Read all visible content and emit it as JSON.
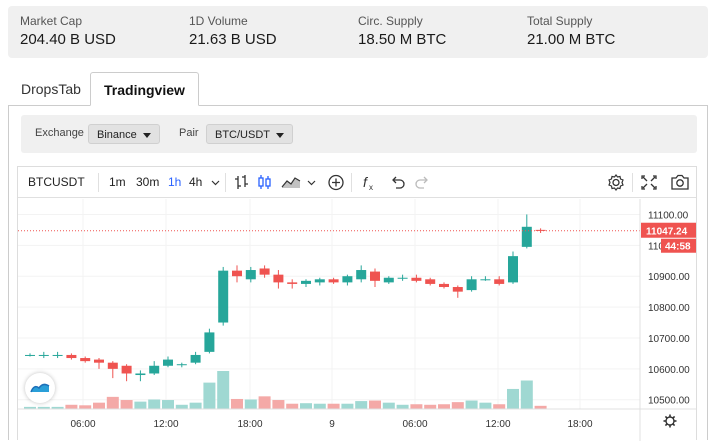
{
  "stats": [
    {
      "label": "Market Cap",
      "value": "204.40 B USD"
    },
    {
      "label": "1D Volume",
      "value": "21.63 B USD"
    },
    {
      "label": "Circ. Supply",
      "value": "18.50 M BTC"
    },
    {
      "label": "Total Supply",
      "value": "21.00 M BTC"
    }
  ],
  "tabs": {
    "drops": "DropsTab",
    "tradingview": "Tradingview"
  },
  "selectors": {
    "exchange_label": "Exchange",
    "exchange_value": "Binance",
    "pair_label": "Pair",
    "pair_value": "BTC/USDT"
  },
  "toolbar": {
    "symbol": "BTCUSDT",
    "intervals": [
      "1m",
      "30m",
      "1h",
      "4h"
    ],
    "selected_interval": "1h",
    "icons": [
      "bars-chart-icon",
      "candles-chart-icon",
      "area-chart-icon",
      "indicators-plus-icon",
      "fx-icon",
      "undo-icon",
      "redo-icon",
      "settings-icon",
      "fullscreen-icon",
      "snapshot-icon"
    ]
  },
  "colors": {
    "up": "#26a69a",
    "down": "#ef5350",
    "up_vol": "#9fd8d2",
    "down_vol": "#f4a9a7",
    "accent": "#2962ff"
  },
  "chart_data": {
    "type": "candlestick",
    "price_axis": {
      "ticks": [
        "11100.00",
        "11000.00",
        "10900.00",
        "10800.00",
        "10700.00",
        "10600.00",
        "10500.00"
      ],
      "range": [
        10470,
        11150
      ]
    },
    "time_axis": {
      "ticks": [
        "06:00",
        "12:00",
        "18:00",
        "9",
        "06:00",
        "12:00",
        "18:00"
      ]
    },
    "last_price_label": "11047.24",
    "countdown_label": "44:58",
    "candles": [
      {
        "o": 10645,
        "h": 10650,
        "l": 10640,
        "c": 10645,
        "v": 40
      },
      {
        "o": 10645,
        "h": 10655,
        "l": 10635,
        "c": 10645,
        "v": 40
      },
      {
        "o": 10645,
        "h": 10655,
        "l": 10635,
        "c": 10645,
        "v": 40
      },
      {
        "o": 10645,
        "h": 10650,
        "l": 10630,
        "c": 10635,
        "v": 80
      },
      {
        "o": 10635,
        "h": 10640,
        "l": 10620,
        "c": 10625,
        "v": 70
      },
      {
        "o": 10630,
        "h": 10635,
        "l": 10600,
        "c": 10620,
        "v": 120
      },
      {
        "o": 10620,
        "h": 10625,
        "l": 10570,
        "c": 10600,
        "v": 230
      },
      {
        "o": 10610,
        "h": 10615,
        "l": 10560,
        "c": 10585,
        "v": 170
      },
      {
        "o": 10580,
        "h": 10595,
        "l": 10560,
        "c": 10585,
        "v": 140
      },
      {
        "o": 10585,
        "h": 10625,
        "l": 10580,
        "c": 10610,
        "v": 180
      },
      {
        "o": 10610,
        "h": 10640,
        "l": 10605,
        "c": 10630,
        "v": 170
      },
      {
        "o": 10615,
        "h": 10620,
        "l": 10605,
        "c": 10615,
        "v": 80
      },
      {
        "o": 10620,
        "h": 10655,
        "l": 10615,
        "c": 10645,
        "v": 120
      },
      {
        "o": 10655,
        "h": 10730,
        "l": 10650,
        "c": 10718,
        "v": 500
      },
      {
        "o": 10750,
        "h": 10930,
        "l": 10740,
        "c": 10918,
        "v": 720
      },
      {
        "o": 10918,
        "h": 10935,
        "l": 10880,
        "c": 10900,
        "v": 190
      },
      {
        "o": 10890,
        "h": 10930,
        "l": 10880,
        "c": 10920,
        "v": 180
      },
      {
        "o": 10925,
        "h": 10935,
        "l": 10895,
        "c": 10905,
        "v": 240
      },
      {
        "o": 10905,
        "h": 10920,
        "l": 10860,
        "c": 10880,
        "v": 170
      },
      {
        "o": 10880,
        "h": 10890,
        "l": 10860,
        "c": 10875,
        "v": 100
      },
      {
        "o": 10875,
        "h": 10890,
        "l": 10865,
        "c": 10885,
        "v": 110
      },
      {
        "o": 10880,
        "h": 10895,
        "l": 10870,
        "c": 10890,
        "v": 100
      },
      {
        "o": 10890,
        "h": 10895,
        "l": 10875,
        "c": 10880,
        "v": 100
      },
      {
        "o": 10880,
        "h": 10905,
        "l": 10870,
        "c": 10900,
        "v": 100
      },
      {
        "o": 10890,
        "h": 10935,
        "l": 10880,
        "c": 10920,
        "v": 150
      },
      {
        "o": 10915,
        "h": 10925,
        "l": 10865,
        "c": 10885,
        "v": 160
      },
      {
        "o": 10880,
        "h": 10900,
        "l": 10875,
        "c": 10895,
        "v": 120
      },
      {
        "o": 10895,
        "h": 10905,
        "l": 10885,
        "c": 10895,
        "v": 80
      },
      {
        "o": 10895,
        "h": 10905,
        "l": 10880,
        "c": 10885,
        "v": 90
      },
      {
        "o": 10890,
        "h": 10895,
        "l": 10870,
        "c": 10875,
        "v": 80
      },
      {
        "o": 10875,
        "h": 10880,
        "l": 10860,
        "c": 10865,
        "v": 90
      },
      {
        "o": 10865,
        "h": 10870,
        "l": 10830,
        "c": 10850,
        "v": 130
      },
      {
        "o": 10855,
        "h": 10900,
        "l": 10850,
        "c": 10890,
        "v": 160
      },
      {
        "o": 10890,
        "h": 10900,
        "l": 10885,
        "c": 10890,
        "v": 120
      },
      {
        "o": 10890,
        "h": 10900,
        "l": 10870,
        "c": 10875,
        "v": 90
      },
      {
        "o": 10880,
        "h": 10980,
        "l": 10875,
        "c": 10965,
        "v": 380
      },
      {
        "o": 10995,
        "h": 11100,
        "l": 10990,
        "c": 11060,
        "v": 540
      },
      {
        "o": 11050,
        "h": 11055,
        "l": 11040,
        "c": 11047,
        "v": 60
      }
    ]
  }
}
